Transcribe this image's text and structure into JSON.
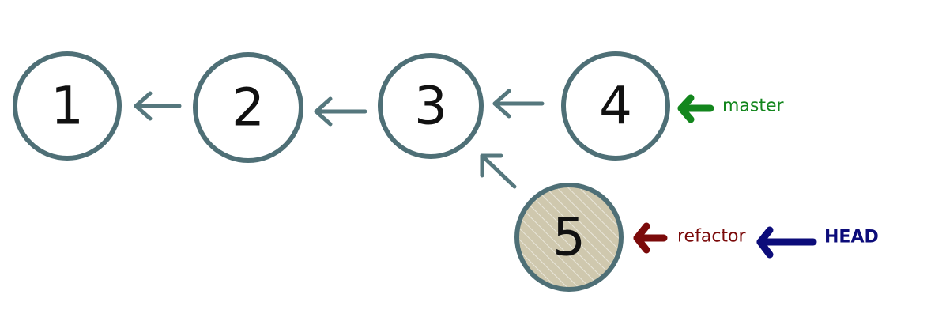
{
  "colors": {
    "commit_stroke": "#4e6f76",
    "commit_fill": "#ffffff",
    "commit_fill_highlight": "#cfc8ae",
    "hatch": "#ffffff",
    "arrow": "#55777d",
    "master": "#13861d",
    "refactor": "#7b0a0a",
    "head": "#0c0c7a"
  },
  "commits": [
    {
      "id": "c1",
      "label": "1",
      "highlighted": false
    },
    {
      "id": "c2",
      "label": "2",
      "highlighted": false
    },
    {
      "id": "c3",
      "label": "3",
      "highlighted": false
    },
    {
      "id": "c4",
      "label": "4",
      "highlighted": false
    },
    {
      "id": "c5",
      "label": "5",
      "highlighted": true
    }
  ],
  "edges": [
    {
      "from": "2",
      "to": "1"
    },
    {
      "from": "3",
      "to": "2"
    },
    {
      "from": "4",
      "to": "3"
    },
    {
      "from": "5",
      "to": "3"
    }
  ],
  "refs": {
    "master": {
      "label": "master",
      "points_to": "4"
    },
    "refactor": {
      "label": "refactor",
      "points_to": "5"
    },
    "head": {
      "label": "HEAD",
      "points_to": "refactor"
    }
  }
}
